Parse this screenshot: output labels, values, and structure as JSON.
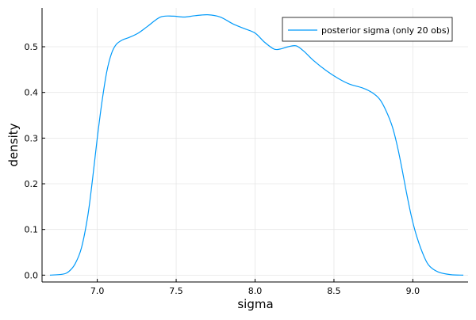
{
  "chart_data": {
    "type": "line",
    "title": "",
    "xlabel": "sigma",
    "ylabel": "density",
    "xlim": [
      6.65,
      9.35
    ],
    "ylim": [
      -0.015,
      0.585
    ],
    "xticks": [
      7.0,
      7.5,
      8.0,
      8.5,
      9.0
    ],
    "xtick_labels": [
      "7.0",
      "7.5",
      "8.0",
      "8.5",
      "9.0"
    ],
    "yticks": [
      0.0,
      0.1,
      0.2,
      0.3,
      0.4,
      0.5
    ],
    "ytick_labels": [
      "0.0",
      "0.1",
      "0.2",
      "0.3",
      "0.4",
      "0.5"
    ],
    "grid": true,
    "legend_position": "top-right",
    "series": [
      {
        "name": "posterior sigma (only 20 obs)",
        "color": "#009AFA",
        "x": [
          6.7,
          6.78,
          6.82,
          6.86,
          6.9,
          6.94,
          6.97,
          7.0,
          7.03,
          7.06,
          7.09,
          7.12,
          7.16,
          7.2,
          7.26,
          7.32,
          7.4,
          7.48,
          7.55,
          7.62,
          7.7,
          7.78,
          7.86,
          7.93,
          8.0,
          8.06,
          8.12,
          8.16,
          8.21,
          8.26,
          8.31,
          8.37,
          8.45,
          8.53,
          8.6,
          8.68,
          8.74,
          8.79,
          8.83,
          8.87,
          8.9,
          8.93,
          8.96,
          8.99,
          9.02,
          9.06,
          9.1,
          9.16,
          9.24,
          9.32
        ],
        "y": [
          0.0,
          0.002,
          0.008,
          0.025,
          0.06,
          0.13,
          0.21,
          0.3,
          0.38,
          0.445,
          0.485,
          0.505,
          0.515,
          0.52,
          0.53,
          0.545,
          0.565,
          0.567,
          0.565,
          0.568,
          0.57,
          0.565,
          0.55,
          0.54,
          0.53,
          0.51,
          0.495,
          0.495,
          0.5,
          0.502,
          0.49,
          0.47,
          0.448,
          0.43,
          0.418,
          0.41,
          0.4,
          0.385,
          0.36,
          0.325,
          0.285,
          0.235,
          0.18,
          0.13,
          0.09,
          0.05,
          0.022,
          0.007,
          0.001,
          0.0
        ]
      }
    ]
  }
}
